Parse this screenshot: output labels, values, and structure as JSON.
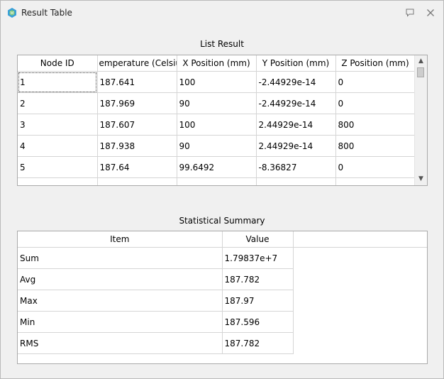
{
  "window": {
    "title": "Result Table"
  },
  "list_result": {
    "title": "List Result",
    "columns": [
      "Node ID",
      "emperature (Celsius",
      "X Position (mm)",
      "Y Position (mm)",
      "Z Position (mm)"
    ],
    "rows": [
      [
        "1",
        "187.641",
        "100",
        "-2.44929e-14",
        "0"
      ],
      [
        "2",
        "187.969",
        "90",
        "-2.44929e-14",
        "0"
      ],
      [
        "3",
        "187.607",
        "100",
        "2.44929e-14",
        "800"
      ],
      [
        "4",
        "187.938",
        "90",
        "2.44929e-14",
        "800"
      ],
      [
        "5",
        "187.64",
        "99.6492",
        "-8.36827",
        "0"
      ]
    ]
  },
  "statistical_summary": {
    "title": "Statistical Summary",
    "columns": [
      "Item",
      "Value"
    ],
    "rows": [
      [
        "Sum",
        "1.79837e+7"
      ],
      [
        "Avg",
        "187.782"
      ],
      [
        "Max",
        "187.97"
      ],
      [
        "Min",
        "187.596"
      ],
      [
        "RMS",
        "187.782"
      ]
    ]
  }
}
